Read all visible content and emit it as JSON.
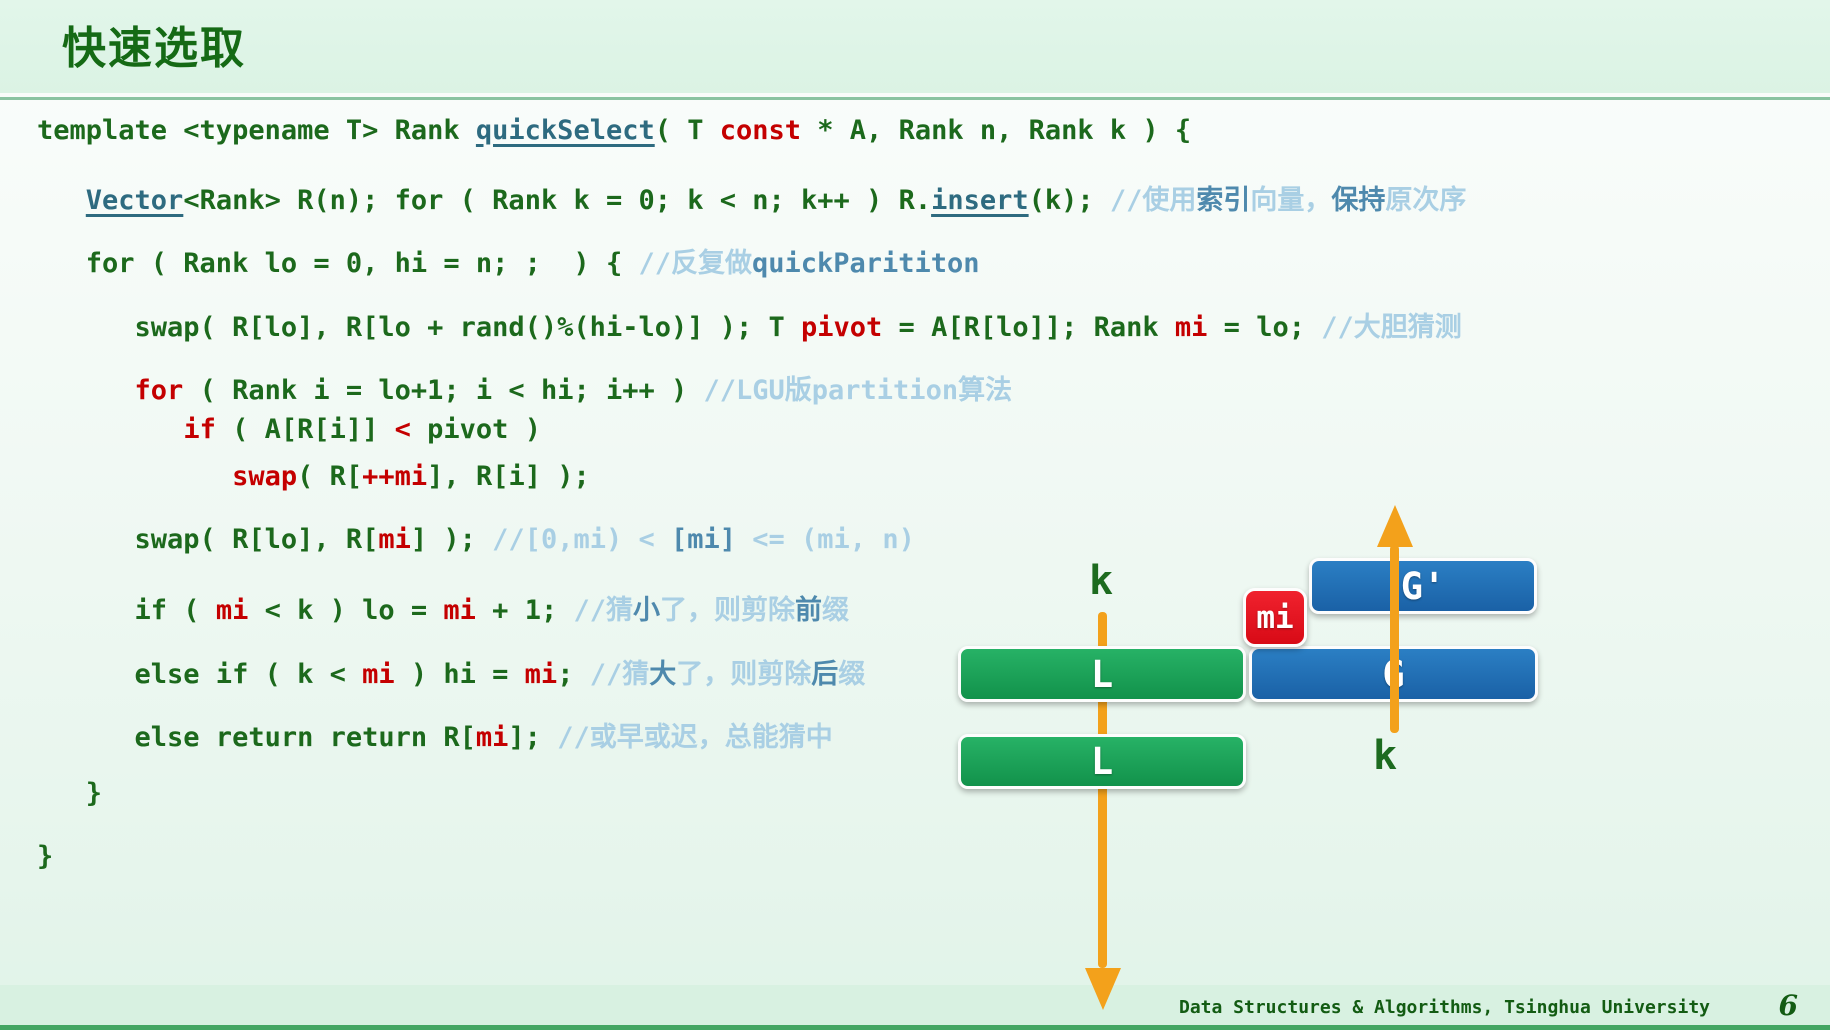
{
  "title": "快速选取",
  "code": {
    "lines": [
      {
        "segments": [
          [
            "g",
            "template <typename T> Rank "
          ],
          [
            "t",
            "quickSelect"
          ],
          [
            "g",
            "( T "
          ],
          [
            "r",
            "const"
          ],
          [
            "g",
            " * A, Rank n, Rank k ) {"
          ]
        ]
      },
      {
        "segments": [
          [
            "g",
            "   "
          ],
          [
            "t",
            "Vector"
          ],
          [
            "g",
            "<Rank> R(n); for ( Rank k = 0; k < n; k++ ) R."
          ],
          [
            "t",
            "insert"
          ],
          [
            "g",
            "(k); "
          ],
          [
            "cl",
            "//使用"
          ],
          [
            "cs",
            "索引"
          ],
          [
            "cl",
            "向量，"
          ],
          [
            "cs",
            "保持"
          ],
          [
            "cl",
            "原次序"
          ]
        ]
      },
      {
        "segments": [
          [
            "g",
            "   for ( Rank lo = 0, hi = n; ;  ) { "
          ],
          [
            "cl",
            "//反复做"
          ],
          [
            "cs",
            "quickParititon"
          ]
        ]
      },
      {
        "segments": [
          [
            "g",
            "      swap( R[lo], R[lo + rand()%(hi-lo)] ); T "
          ],
          [
            "r",
            "pivot"
          ],
          [
            "g",
            " = A[R[lo]]; Rank "
          ],
          [
            "r",
            "mi"
          ],
          [
            "g",
            " = lo; "
          ],
          [
            "cl",
            "//大胆猜测"
          ]
        ]
      },
      {
        "segments": [
          [
            "g",
            "      "
          ],
          [
            "r",
            "for"
          ],
          [
            "g",
            " ( Rank i = lo+1; i < hi; i++ ) "
          ],
          [
            "cl",
            "//LGU版partition算法"
          ]
        ]
      },
      {
        "segments": [
          [
            "g",
            "         "
          ],
          [
            "r",
            "if"
          ],
          [
            "g",
            " ( A[R[i]] "
          ],
          [
            "r",
            "<"
          ],
          [
            "g",
            " pivot )"
          ]
        ]
      },
      {
        "segments": [
          [
            "g",
            "            "
          ],
          [
            "r",
            "swap"
          ],
          [
            "g",
            "( R["
          ],
          [
            "r",
            "++mi"
          ],
          [
            "g",
            "], R[i] );"
          ]
        ]
      },
      {
        "segments": [
          [
            "g",
            "      swap( R[lo], R["
          ],
          [
            "r",
            "mi"
          ],
          [
            "g",
            "] ); "
          ],
          [
            "cl",
            "//[0,mi) < "
          ],
          [
            "cs",
            "[mi]"
          ],
          [
            "cl",
            " <= (mi, n)"
          ]
        ]
      },
      {
        "segments": [
          [
            "g",
            "      if ( "
          ],
          [
            "r",
            "mi"
          ],
          [
            "g",
            " < k ) lo = "
          ],
          [
            "r",
            "mi"
          ],
          [
            "g",
            " + 1; "
          ],
          [
            "cl",
            "//猜"
          ],
          [
            "cs",
            "小"
          ],
          [
            "cl",
            "了，则剪除"
          ],
          [
            "cs",
            "前"
          ],
          [
            "cl",
            "缀"
          ]
        ]
      },
      {
        "segments": [
          [
            "g",
            "      else if ( k < "
          ],
          [
            "r",
            "mi"
          ],
          [
            "g",
            " ) hi = "
          ],
          [
            "r",
            "mi"
          ],
          [
            "g",
            "; "
          ],
          [
            "cl",
            "//猜"
          ],
          [
            "cs",
            "大"
          ],
          [
            "cl",
            "了，则剪除"
          ],
          [
            "cs",
            "后"
          ],
          [
            "cl",
            "缀"
          ]
        ]
      },
      {
        "segments": [
          [
            "g",
            "      else return return R["
          ],
          [
            "r",
            "mi"
          ],
          [
            "g",
            "]; "
          ],
          [
            "cl",
            "//或早或迟，总能猜中"
          ]
        ]
      },
      {
        "segments": [
          [
            "g",
            "   }"
          ]
        ]
      },
      {
        "segments": [
          [
            "g",
            "}"
          ]
        ]
      }
    ]
  },
  "diagram": {
    "k_top": "k",
    "k_bottom": "k",
    "mi_label": "mi",
    "g_prime_label": "G'",
    "g_label": "G",
    "l_top_label": "L",
    "l_bottom_label": "L"
  },
  "footer": {
    "course": "Data Structures & Algorithms, Tsinghua University",
    "page": "6"
  },
  "colors": {
    "title_green": "#156a15",
    "code_green": "#1c691c",
    "code_red": "#c40000",
    "code_teal": "#2e6b80",
    "comment_light": "#a9cfe4",
    "comment_steel": "#4e89ad",
    "accent_orange": "#f3a11b",
    "box_blue": "#1f6cb0",
    "box_green": "#1ca75c",
    "box_red": "#e81320"
  }
}
